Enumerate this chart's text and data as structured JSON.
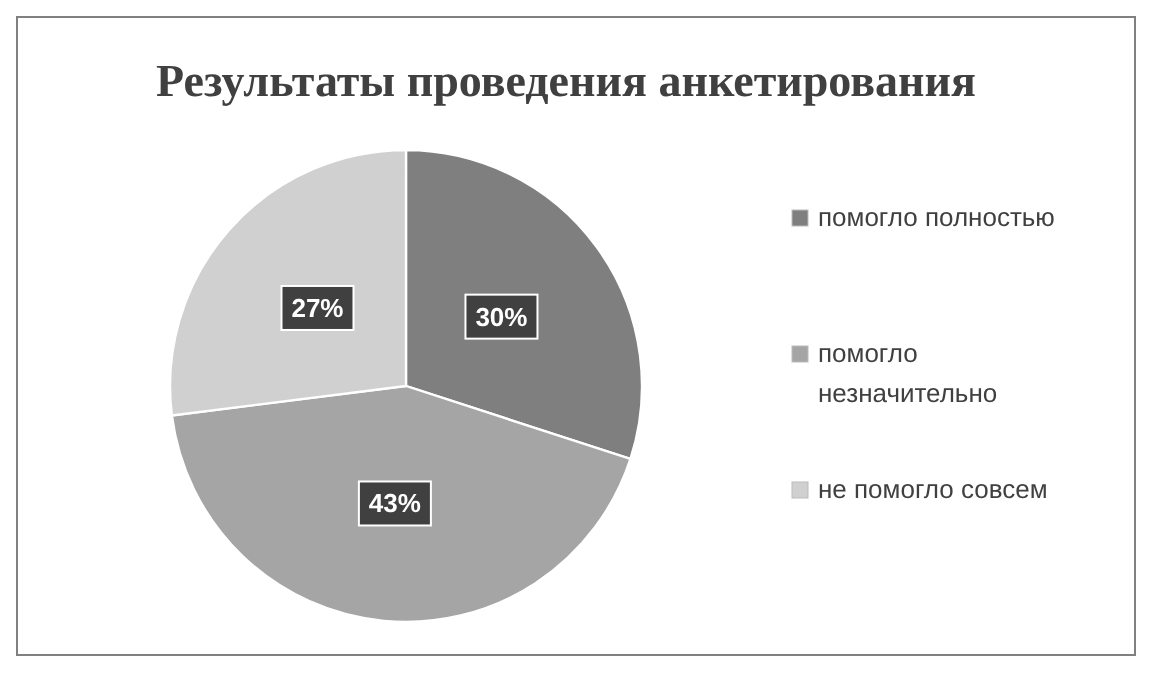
{
  "chart_data": {
    "type": "pie",
    "title": "Результаты проведения анкетирования",
    "categories": [
      "помогло полностью",
      "помогло незначительно",
      "не помогло совсем"
    ],
    "values": [
      30,
      43,
      27
    ],
    "value_labels": [
      "30%",
      "43%",
      "27%"
    ],
    "colors": [
      "#7f7f7f",
      "#a5a5a5",
      "#d0d0d0"
    ],
    "legend": "right"
  }
}
